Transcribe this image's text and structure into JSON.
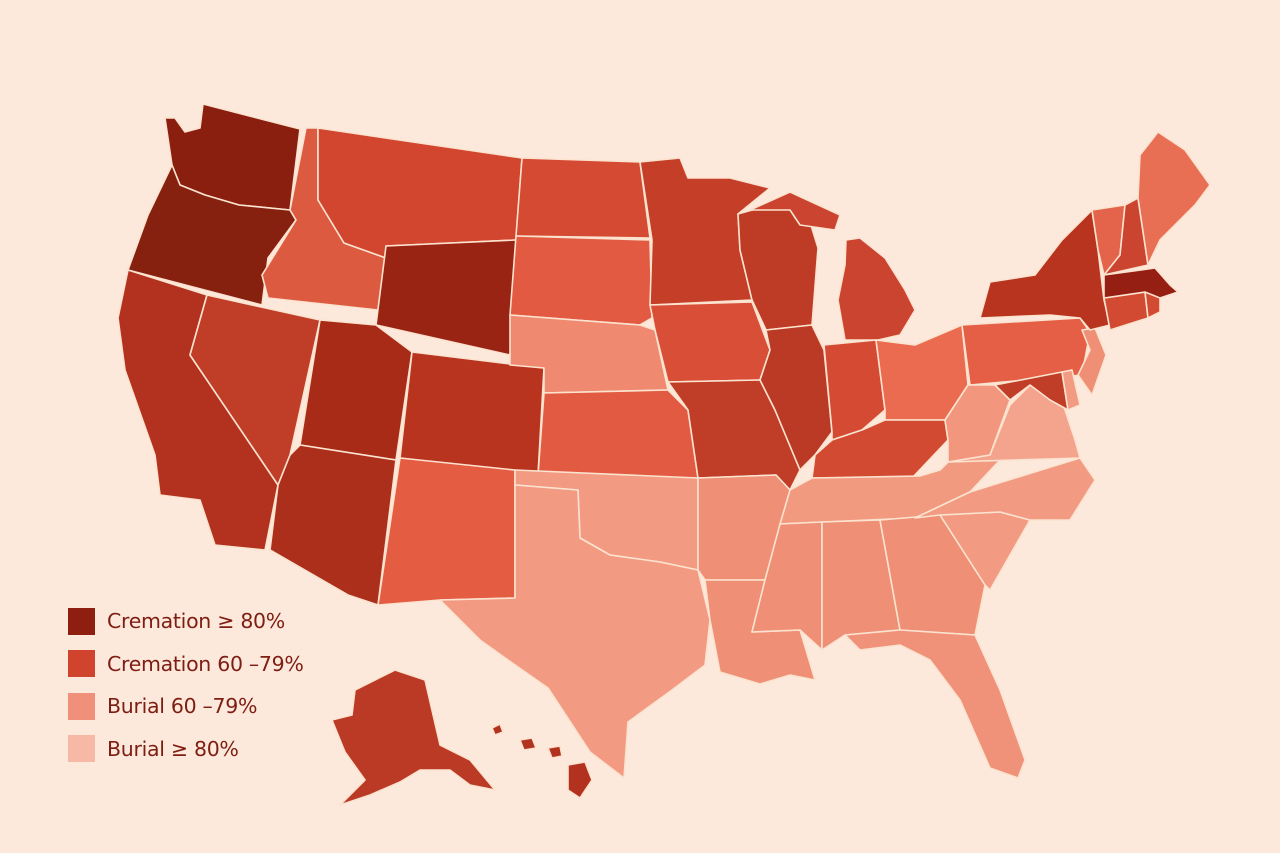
{
  "legend": {
    "items": [
      {
        "key": "c80",
        "label": "Cremation ≥ 80%",
        "color": "#8e1f10"
      },
      {
        "key": "c60",
        "label": "Cremation 60 –79%",
        "color": "#d0442e"
      },
      {
        "key": "b60",
        "label": "Burial 60 –79%",
        "color": "#f1907a"
      },
      {
        "key": "b80",
        "label": "Burial ≥ 80%",
        "color": "#f7b8a6"
      }
    ]
  },
  "map": {
    "state_categories": {
      "WA": "c80",
      "OR": "c80",
      "CA": "c60",
      "ID": "c60",
      "NV": "c60",
      "MT": "c60",
      "WY": "c80",
      "UT": "c60",
      "AZ": "c60",
      "CO": "c60",
      "NM": "c60",
      "ND": "c60",
      "SD": "c60",
      "NE": "b60",
      "KS": "c60",
      "OK": "b60",
      "TX": "b60",
      "MN": "c60",
      "IA": "c60",
      "MO": "c60",
      "AR": "b60",
      "LA": "b60",
      "WI": "c60",
      "IL": "c60",
      "MI": "c60",
      "IN": "c60",
      "OH": "c60",
      "KY": "c60",
      "TN": "b60",
      "MS": "b60",
      "AL": "b60",
      "GA": "b60",
      "FL": "b60",
      "SC": "b60",
      "NC": "b60",
      "VA": "b60",
      "WV": "b60",
      "PA": "c60",
      "NY": "c60",
      "VT": "c60",
      "NH": "c60",
      "ME": "c60",
      "MA": "c80",
      "CT": "c60",
      "RI": "c60",
      "NJ": "b60",
      "DE": "b60",
      "MD": "c60",
      "AK": "c60",
      "HI": "c60"
    },
    "shade_overrides": {
      "WA": "#8a1e0f",
      "OR": "#86200f",
      "WY": "#9a2414",
      "MA": "#951f12",
      "CA": "#b3321f",
      "UT": "#a82b18",
      "AZ": "#ac2f1b",
      "CO": "#b8341f",
      "NV": "#c03d27",
      "ID": "#dc5a40",
      "MT": "#d2452f",
      "ND": "#d54a33",
      "SD": "#e25a41",
      "KS": "#e25a41",
      "NM": "#e45d42",
      "MN": "#c43e28",
      "IA": "#d84e37",
      "MO": "#c03d27",
      "WI": "#be3b26",
      "IL": "#bb3a25",
      "MI": "#cb4430",
      "IN": "#d54a33",
      "OH": "#ea6b4f",
      "KY": "#d24a31",
      "PA": "#e45f45",
      "NY": "#b8341f",
      "VT": "#e3644b",
      "NH": "#cb4430",
      "ME": "#e86f54",
      "CT": "#d24a31",
      "RI": "#d24a31",
      "MD": "#c03d27",
      "NE": "#ef8a70",
      "OK": "#f29a82",
      "TX": "#f29a82",
      "AR": "#ee8f76",
      "LA": "#ee8f76",
      "TN": "#f19a80",
      "MS": "#ee8f76",
      "AL": "#ee8f76",
      "GA": "#ee8f76",
      "FL": "#f0917a",
      "SC": "#f29a82",
      "NC": "#f29a82",
      "VA": "#f4a38c",
      "WV": "#f2977e",
      "NJ": "#ee8f76",
      "DE": "#f29a82",
      "AK": "#bb3a25",
      "HI": "#b3321f"
    }
  }
}
